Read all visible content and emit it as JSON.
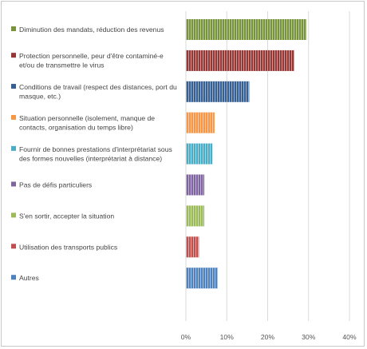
{
  "chart_data": {
    "type": "bar",
    "orientation": "horizontal",
    "categories": [
      [
        "Diminution des mandats,  réduction des revenus"
      ],
      [
        "Protection personnelle, peur d'être contaminé-e",
        "et/ou de transmettre le virus"
      ],
      [
        "Conditions de travail (respect des distances, port du",
        "masque, etc.)"
      ],
      [
        "Situation personnelle (isolement, manque de",
        "contacts, organisation du temps libre)"
      ],
      [
        "Fournir de bonnes prestations d'interprétariat sous",
        "des formes nouvelles (interprétariat à distance)"
      ],
      [
        "Pas de défis particuliers"
      ],
      [
        "S'en sortir, accepter la situation"
      ],
      [
        "Utilisation des transports publics"
      ],
      [
        "Autres"
      ]
    ],
    "values": [
      29.5,
      26.5,
      15.5,
      7.0,
      6.5,
      4.5,
      4.5,
      3.2,
      7.8
    ],
    "colors": [
      "#77933c",
      "#953735",
      "#376092",
      "#f79646",
      "#4bacc6",
      "#8064a2",
      "#9bbb59",
      "#c0504d",
      "#4f81bd"
    ],
    "xlim": [
      0,
      40
    ],
    "ticks": [
      0,
      10,
      20,
      30,
      40
    ],
    "tick_labels": [
      "0%",
      "10%",
      "20%",
      "30%",
      "40%"
    ],
    "grid": true,
    "legend": "left"
  }
}
